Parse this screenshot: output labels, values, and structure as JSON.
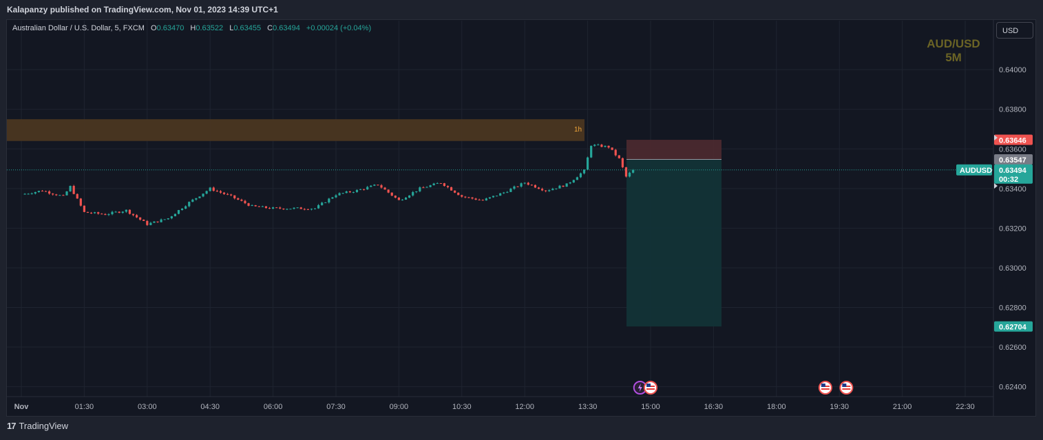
{
  "header": {
    "published_by": "Kalapanzy published on TradingView.com, Nov 01, 2023 14:39 UTC+1"
  },
  "legend": {
    "symbol": "Australian Dollar / U.S. Dollar, 5, FXCM",
    "open_label": "O",
    "open": "0.63470",
    "high_label": "H",
    "high": "0.63522",
    "low_label": "L",
    "low": "0.63455",
    "close_label": "C",
    "close": "0.63494",
    "change": "+0.00024 (+0.04%)"
  },
  "currency_button": "USD",
  "watermark": {
    "line1": "AUD/USD",
    "line2": "5M"
  },
  "zone_label": "1h",
  "price_tags": {
    "stop": "0.63646",
    "entry": "0.63547",
    "symbol_tag": "AUDUSD",
    "current": "0.63494",
    "countdown": "00:32",
    "target": "0.62704"
  },
  "footer": {
    "brand": "TradingView",
    "logo_glyph": "17"
  },
  "colors": {
    "bull": "#26a69a",
    "bear": "#ef5350",
    "zone": "#4a3621",
    "stop_zone": "#4e2a30",
    "target_zone": "#123337",
    "background": "#131722"
  },
  "chart_data": {
    "type": "candlestick",
    "instrument": "AUD/USD",
    "timeframe": "5",
    "x_ticks": [
      "Nov",
      "01:30",
      "03:00",
      "04:30",
      "06:00",
      "07:30",
      "09:00",
      "10:30",
      "12:00",
      "13:30",
      "15:00",
      "16:30",
      "18:00",
      "19:30",
      "21:00",
      "22:30"
    ],
    "y_ticks": [
      "0.64000",
      "0.63800",
      "0.63600",
      "0.63400",
      "0.63200",
      "0.63000",
      "0.62800",
      "0.62600",
      "0.62400"
    ],
    "ylim": [
      0.6235,
      0.6415
    ],
    "resistance_zone": {
      "low": 0.6364,
      "high": 0.6375,
      "label": "1h"
    },
    "short_position": {
      "entry": 0.63547,
      "stop": 0.63646,
      "target": 0.62704
    },
    "current_price": 0.63494,
    "close_path": [
      {
        "t": "00:00",
        "price": 0.6337
      },
      {
        "t": "00:30",
        "price": 0.6339
      },
      {
        "t": "01:00",
        "price": 0.6336
      },
      {
        "t": "01:10",
        "price": 0.6341
      },
      {
        "t": "01:30",
        "price": 0.6328
      },
      {
        "t": "02:00",
        "price": 0.6327
      },
      {
        "t": "02:30",
        "price": 0.6329
      },
      {
        "t": "03:00",
        "price": 0.6322
      },
      {
        "t": "03:30",
        "price": 0.6325
      },
      {
        "t": "04:00",
        "price": 0.6333
      },
      {
        "t": "04:30",
        "price": 0.634
      },
      {
        "t": "05:00",
        "price": 0.6336
      },
      {
        "t": "05:30",
        "price": 0.6331
      },
      {
        "t": "06:00",
        "price": 0.633
      },
      {
        "t": "06:30",
        "price": 0.633
      },
      {
        "t": "07:00",
        "price": 0.633
      },
      {
        "t": "07:30",
        "price": 0.6337
      },
      {
        "t": "08:00",
        "price": 0.6339
      },
      {
        "t": "08:30",
        "price": 0.6342
      },
      {
        "t": "09:00",
        "price": 0.6334
      },
      {
        "t": "09:30",
        "price": 0.634
      },
      {
        "t": "10:00",
        "price": 0.6343
      },
      {
        "t": "10:30",
        "price": 0.6336
      },
      {
        "t": "11:00",
        "price": 0.6334
      },
      {
        "t": "11:30",
        "price": 0.6338
      },
      {
        "t": "12:00",
        "price": 0.6343
      },
      {
        "t": "12:30",
        "price": 0.6339
      },
      {
        "t": "13:00",
        "price": 0.6342
      },
      {
        "t": "13:25",
        "price": 0.6349
      },
      {
        "t": "13:35",
        "price": 0.6362
      },
      {
        "t": "14:00",
        "price": 0.6361
      },
      {
        "t": "14:15",
        "price": 0.6355
      },
      {
        "t": "14:25",
        "price": 0.6346
      },
      {
        "t": "14:35",
        "price": 0.63494
      }
    ],
    "event_markers": [
      {
        "t": "14:45",
        "icon": "lightning-icon"
      },
      {
        "t": "15:00",
        "icon": "us-flag-icon"
      },
      {
        "t": "19:10",
        "icon": "us-flag-icon"
      },
      {
        "t": "19:40",
        "icon": "us-flag-icon"
      }
    ]
  }
}
